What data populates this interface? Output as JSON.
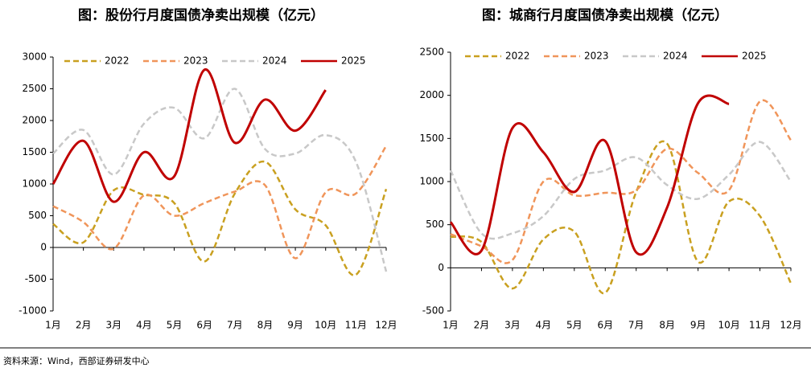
{
  "chart_data": [
    {
      "type": "line",
      "title": "图：股份行月度国债净卖出规模（亿元）",
      "categories": [
        "1月",
        "2月",
        "3月",
        "4月",
        "5月",
        "6月",
        "7月",
        "8月",
        "9月",
        "10月",
        "11月",
        "12月"
      ],
      "ylim": [
        -1000,
        3000
      ],
      "yticks": [
        -1000,
        -500,
        0,
        500,
        1000,
        1500,
        2000,
        2500,
        3000
      ],
      "grid": false,
      "legend": "top",
      "smooth": true,
      "series": [
        {
          "name": "2022",
          "color": "#c9a020",
          "line_style": "dashed",
          "values": [
            370,
            80,
            900,
            830,
            700,
            -220,
            850,
            1350,
            600,
            350,
            -430,
            920
          ]
        },
        {
          "name": "2023",
          "color": "#f0955a",
          "line_style": "dashed",
          "values": [
            650,
            400,
            -20,
            820,
            500,
            700,
            880,
            980,
            -170,
            870,
            850,
            1600
          ]
        },
        {
          "name": "2024",
          "color": "#c8c8c8",
          "line_style": "dashed",
          "values": [
            1480,
            1850,
            1150,
            1950,
            2200,
            1720,
            2500,
            1550,
            1480,
            1770,
            1350,
            -380
          ]
        },
        {
          "name": "2025",
          "color": "#c00000",
          "line_style": "solid",
          "values": [
            1000,
            1680,
            720,
            1500,
            1120,
            2800,
            1650,
            2330,
            1840,
            2480,
            null,
            null
          ]
        }
      ]
    },
    {
      "type": "line",
      "title": "图：城商行月度国债净卖出规模（亿元）",
      "categories": [
        "1月",
        "2月",
        "3月",
        "4月",
        "5月",
        "6月",
        "7月",
        "8月",
        "9月",
        "10月",
        "11月",
        "12月"
      ],
      "ylim": [
        -500,
        2500
      ],
      "yticks": [
        -500,
        0,
        500,
        1000,
        1500,
        2000,
        2500
      ],
      "grid": false,
      "legend": "top",
      "smooth": true,
      "series": [
        {
          "name": "2022",
          "color": "#c9a020",
          "line_style": "dashed",
          "values": [
            360,
            300,
            -240,
            330,
            420,
            -290,
            880,
            1440,
            70,
            770,
            600,
            -180
          ]
        },
        {
          "name": "2023",
          "color": "#f0955a",
          "line_style": "dashed",
          "values": [
            390,
            250,
            90,
            1000,
            840,
            870,
            900,
            1380,
            1100,
            900,
            1930,
            1480
          ]
        },
        {
          "name": "2024",
          "color": "#c8c8c8",
          "line_style": "dashed",
          "values": [
            1130,
            400,
            400,
            600,
            1030,
            1130,
            1280,
            960,
            800,
            1080,
            1460,
            1000
          ]
        },
        {
          "name": "2025",
          "color": "#c00000",
          "line_style": "solid",
          "values": [
            530,
            200,
            1620,
            1340,
            880,
            1470,
            180,
            700,
            1910,
            1900,
            null,
            null
          ]
        }
      ]
    }
  ],
  "source": "资料来源：Wind，西部证券研发中心"
}
